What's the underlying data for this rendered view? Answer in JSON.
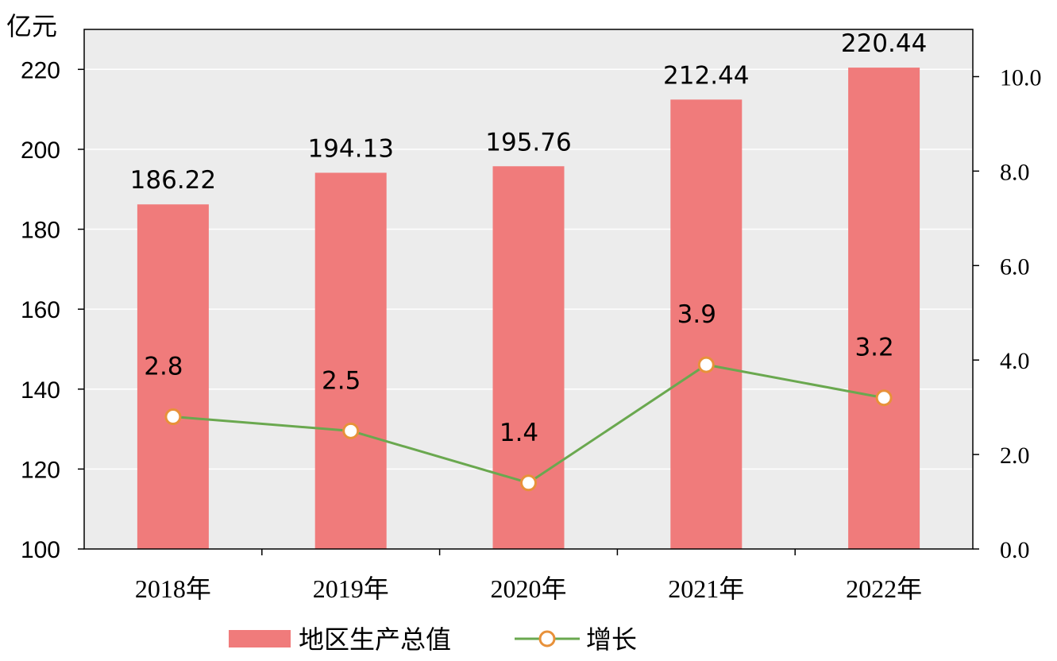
{
  "chart_data": {
    "type": "bar+line",
    "unit_left": "亿元",
    "categories": [
      "2018年",
      "2019年",
      "2020年",
      "2021年",
      "2022年"
    ],
    "series": [
      {
        "name": "地区生产总值",
        "type": "bar",
        "axis": "left",
        "values": [
          186.22,
          194.13,
          195.76,
          212.44,
          220.44
        ],
        "labels": [
          "186.22",
          "194.13",
          "195.76",
          "212.44",
          "220.44"
        ],
        "color": "#f07b7b"
      },
      {
        "name": "增长",
        "type": "line",
        "axis": "right",
        "values": [
          2.8,
          2.5,
          1.4,
          3.9,
          3.2
        ],
        "labels": [
          "2.8",
          "2.5",
          "1.4",
          "3.9",
          "3.2"
        ],
        "color": "#6aa84f",
        "marker_color": "#e8913a"
      }
    ],
    "y_left": {
      "min": 100,
      "max": 230,
      "ticks": [
        "100",
        "120",
        "140",
        "160",
        "180",
        "200",
        "220"
      ]
    },
    "y_right": {
      "min": 0,
      "max": 11,
      "ticks": [
        "0.0",
        "2.0",
        "4.0",
        "6.0",
        "8.0",
        "10.0"
      ]
    },
    "plot_background": "#ececec",
    "gridlines": true,
    "legend_position": "bottom"
  }
}
